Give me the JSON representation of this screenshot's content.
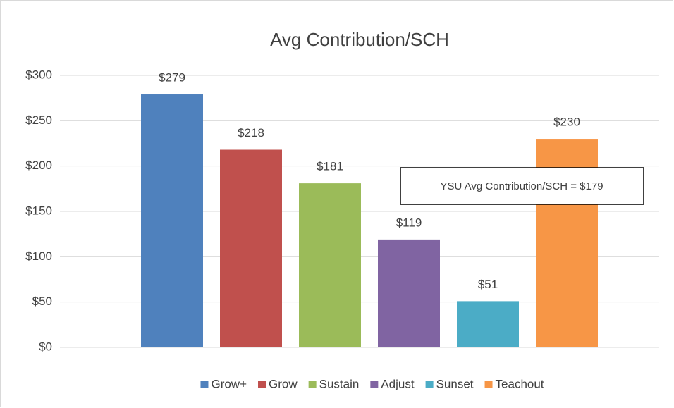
{
  "chart_data": {
    "type": "bar",
    "title": "Avg Contribution/SCH",
    "categories": [
      "Grow+",
      "Grow",
      "Sustain",
      "Adjust",
      "Sunset",
      "Teachout"
    ],
    "values": [
      279,
      218,
      181,
      119,
      51,
      230
    ],
    "value_labels": [
      "$279",
      "$218",
      "$181",
      "$119",
      "$51",
      "$230"
    ],
    "colors": [
      "#4f81bd",
      "#c0504d",
      "#9bbb59",
      "#8064a2",
      "#4bacc6",
      "#f79646"
    ],
    "ylim": [
      0,
      300
    ],
    "yticks": [
      {
        "value": 0,
        "label": "$0"
      },
      {
        "value": 50,
        "label": "$50"
      },
      {
        "value": 100,
        "label": "$100"
      },
      {
        "value": 150,
        "label": "$150"
      },
      {
        "value": 200,
        "label": "$200"
      },
      {
        "value": 250,
        "label": "$250"
      },
      {
        "value": 300,
        "label": "$300"
      }
    ],
    "grid": true,
    "legend": "bottom",
    "annotation": "YSU Avg Contribution/SCH = $179"
  }
}
